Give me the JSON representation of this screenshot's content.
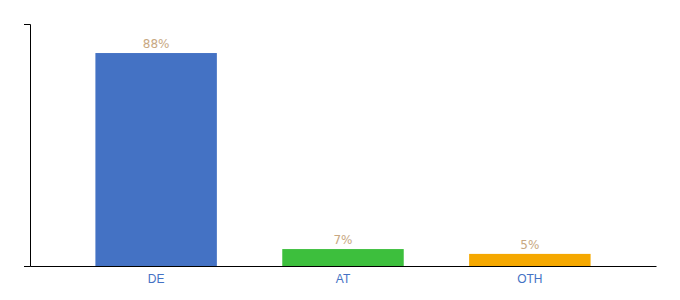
{
  "chart_data": {
    "type": "bar",
    "categories": [
      "DE",
      "AT",
      "OTH"
    ],
    "values": [
      88,
      7,
      5
    ],
    "value_labels": [
      "88%",
      "7%",
      "5%"
    ],
    "colors": [
      "#4472c4",
      "#3dbf3d",
      "#f5a800"
    ],
    "ylim": [
      0,
      100
    ],
    "data_labels": true,
    "tick_labels": "x",
    "grid": false
  }
}
